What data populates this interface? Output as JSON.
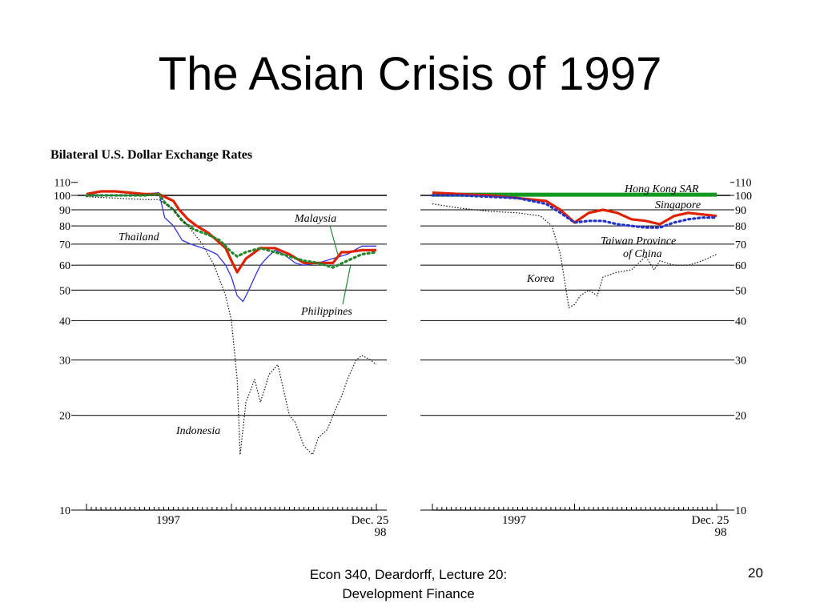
{
  "slide": {
    "title": "The Asian Crisis of 1997",
    "footer_line1": "Econ 340, Deardorff, Lecture 20:",
    "footer_line2": "Development Finance",
    "page_number": "20"
  },
  "chart_data": [
    {
      "type": "line",
      "title": "Bilateral U.S. Dollar Exchange Rates",
      "scale": "log",
      "ylim": [
        10,
        110
      ],
      "yticks": [
        10,
        20,
        30,
        40,
        50,
        60,
        70,
        80,
        90,
        100,
        110
      ],
      "axis_side": "left",
      "reference_line": 100,
      "x_labels": [
        "1997",
        "Dec. 25",
        "98"
      ],
      "x_range": [
        0,
        1
      ],
      "series": [
        {
          "name": "Thailand",
          "color": "#3333dd",
          "style": "solid",
          "x": [
            0,
            0.05,
            0.1,
            0.15,
            0.2,
            0.25,
            0.27,
            0.3,
            0.33,
            0.36,
            0.4,
            0.42,
            0.45,
            0.48,
            0.5,
            0.52,
            0.54,
            0.56,
            0.58,
            0.6,
            0.62,
            0.65,
            0.68,
            0.7,
            0.72,
            0.75,
            0.8,
            0.85,
            0.9,
            0.95,
            1.0
          ],
          "values": [
            101,
            100,
            100,
            100,
            101,
            102,
            85,
            80,
            72,
            70,
            68,
            67,
            65,
            60,
            55,
            48,
            46,
            50,
            55,
            60,
            63,
            67,
            65,
            63,
            61,
            60,
            61,
            63,
            65,
            69,
            69
          ]
        },
        {
          "name": "Malaysia",
          "color": "#dd2200",
          "style": "solid-thick",
          "x": [
            0,
            0.05,
            0.1,
            0.15,
            0.2,
            0.25,
            0.3,
            0.32,
            0.35,
            0.38,
            0.42,
            0.45,
            0.48,
            0.5,
            0.52,
            0.55,
            0.6,
            0.65,
            0.7,
            0.75,
            0.8,
            0.85,
            0.88,
            0.9,
            0.95,
            1.0
          ],
          "values": [
            101,
            103,
            103,
            102,
            101,
            101,
            96,
            90,
            84,
            80,
            76,
            72,
            68,
            62,
            57,
            63,
            68,
            68,
            65,
            61,
            61,
            61,
            66,
            66,
            67,
            67
          ]
        },
        {
          "name": "Philippines",
          "color": "#22882b",
          "style": "dotted",
          "x": [
            0,
            0.1,
            0.2,
            0.25,
            0.27,
            0.3,
            0.33,
            0.37,
            0.42,
            0.46,
            0.5,
            0.52,
            0.55,
            0.6,
            0.65,
            0.7,
            0.75,
            0.8,
            0.85,
            0.9,
            0.95,
            1.0
          ],
          "values": [
            100,
            100,
            100,
            101,
            95,
            90,
            83,
            78,
            75,
            72,
            66,
            64,
            66,
            68,
            66,
            64,
            62,
            61,
            59,
            62,
            65,
            66
          ]
        },
        {
          "name": "Indonesia",
          "color": "#111111",
          "style": "fine-dotted",
          "x": [
            0,
            0.1,
            0.2,
            0.25,
            0.3,
            0.35,
            0.4,
            0.44,
            0.48,
            0.5,
            0.52,
            0.53,
            0.55,
            0.58,
            0.6,
            0.63,
            0.66,
            0.7,
            0.72,
            0.75,
            0.78,
            0.8,
            0.83,
            0.86,
            0.88,
            0.9,
            0.93,
            0.95,
            0.98,
            1.0
          ],
          "values": [
            99,
            98,
            97,
            97,
            90,
            80,
            70,
            60,
            48,
            40,
            26,
            15,
            22,
            26,
            22,
            27,
            29,
            20,
            19,
            16,
            15,
            17,
            18,
            21,
            23,
            26,
            30,
            31,
            30,
            29
          ]
        }
      ]
    },
    {
      "type": "line",
      "scale": "log",
      "ylim": [
        10,
        110
      ],
      "yticks": [
        10,
        20,
        30,
        40,
        50,
        60,
        70,
        80,
        90,
        100,
        110
      ],
      "axis_side": "right",
      "reference_line": 100,
      "x_labels": [
        "1997",
        "Dec. 25",
        "98"
      ],
      "x_range": [
        0,
        1
      ],
      "series": [
        {
          "name": "Hong Kong SAR",
          "color": "#119922",
          "style": "solid-thicker",
          "x": [
            0,
            1.0
          ],
          "values": [
            100.5,
            100.5
          ]
        },
        {
          "name": "Singapore",
          "color": "#dd2200",
          "style": "solid-thick",
          "x": [
            0,
            0.1,
            0.2,
            0.3,
            0.4,
            0.45,
            0.5,
            0.55,
            0.6,
            0.65,
            0.7,
            0.75,
            0.8,
            0.85,
            0.9,
            0.95,
            1.0
          ],
          "values": [
            102,
            101,
            100,
            98,
            96,
            90,
            82,
            88,
            90,
            88,
            84,
            83,
            81,
            86,
            88,
            87,
            86
          ]
        },
        {
          "name": "Taiwan Province of China",
          "color": "#2233cc",
          "style": "dotted",
          "x": [
            0,
            0.1,
            0.2,
            0.3,
            0.4,
            0.45,
            0.5,
            0.55,
            0.6,
            0.65,
            0.7,
            0.75,
            0.8,
            0.85,
            0.9,
            0.95,
            1.0
          ],
          "values": [
            100,
            100,
            99,
            98,
            94,
            88,
            82,
            83,
            83,
            81,
            80,
            79,
            79,
            82,
            84,
            85,
            85
          ]
        },
        {
          "name": "Korea",
          "color": "#111111",
          "style": "fine-dotted",
          "x": [
            0,
            0.1,
            0.2,
            0.3,
            0.38,
            0.42,
            0.45,
            0.47,
            0.48,
            0.5,
            0.52,
            0.55,
            0.58,
            0.6,
            0.65,
            0.7,
            0.75,
            0.78,
            0.8,
            0.85,
            0.9,
            0.95,
            1.0
          ],
          "values": [
            94,
            91,
            89,
            88,
            86,
            80,
            65,
            50,
            44,
            45,
            48,
            50,
            48,
            55,
            57,
            58,
            64,
            58,
            62,
            60,
            60,
            62,
            65
          ]
        }
      ]
    }
  ]
}
